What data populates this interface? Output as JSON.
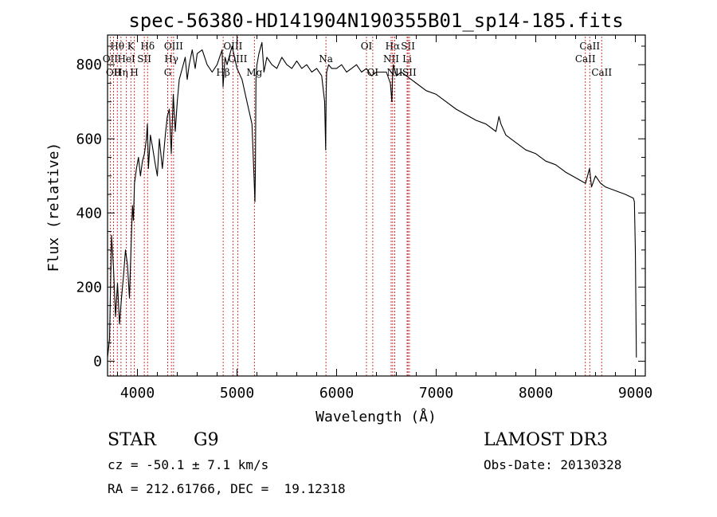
{
  "chart_data": {
    "type": "line",
    "title": "spec-56380-HD141904N190355B01_sp14-185.fits",
    "xlabel": "Wavelength (Å)",
    "ylabel": "Flux (relative)",
    "xlim": [
      3700,
      9100
    ],
    "ylim": [
      -40,
      880
    ],
    "xticks": [
      4000,
      5000,
      6000,
      7000,
      8000,
      9000
    ],
    "yticks": [
      0,
      200,
      400,
      600,
      800
    ],
    "series": [
      {
        "name": "spectrum",
        "x": [
          3700,
          3720,
          3740,
          3760,
          3780,
          3800,
          3820,
          3840,
          3860,
          3880,
          3900,
          3920,
          3940,
          3950,
          3960,
          3970,
          3990,
          4010,
          4030,
          4050,
          4070,
          4090,
          4100,
          4110,
          4130,
          4150,
          4180,
          4200,
          4220,
          4250,
          4280,
          4300,
          4320,
          4340,
          4360,
          4380,
          4400,
          4420,
          4450,
          4480,
          4500,
          4520,
          4550,
          4580,
          4600,
          4650,
          4700,
          4750,
          4800,
          4850,
          4860,
          4880,
          4900,
          4950,
          5000,
          5050,
          5100,
          5150,
          5170,
          5180,
          5185,
          5190,
          5200,
          5220,
          5250,
          5270,
          5300,
          5350,
          5400,
          5450,
          5500,
          5550,
          5600,
          5650,
          5700,
          5750,
          5800,
          5850,
          5880,
          5890,
          5895,
          5900,
          5920,
          5950,
          6000,
          6050,
          6100,
          6150,
          6200,
          6250,
          6300,
          6350,
          6400,
          6450,
          6500,
          6540,
          6555,
          6563,
          6570,
          6600,
          6650,
          6700,
          6750,
          6800,
          6900,
          7000,
          7100,
          7200,
          7300,
          7400,
          7500,
          7600,
          7630,
          7650,
          7700,
          7800,
          7900,
          8000,
          8100,
          8200,
          8300,
          8400,
          8500,
          8540,
          8560,
          8600,
          8650,
          8700,
          8800,
          8900,
          8980,
          8990,
          9000,
          9010
        ],
        "values": [
          10,
          60,
          340,
          250,
          120,
          210,
          100,
          170,
          230,
          300,
          260,
          170,
          340,
          420,
          380,
          480,
          520,
          550,
          500,
          540,
          560,
          600,
          640,
          520,
          610,
          580,
          530,
          500,
          600,
          520,
          610,
          660,
          680,
          560,
          720,
          620,
          700,
          760,
          790,
          820,
          760,
          800,
          840,
          790,
          830,
          840,
          800,
          780,
          800,
          840,
          740,
          820,
          800,
          850,
          790,
          760,
          700,
          640,
          500,
          430,
          520,
          760,
          800,
          830,
          860,
          780,
          820,
          800,
          790,
          820,
          800,
          790,
          810,
          790,
          800,
          780,
          790,
          770,
          700,
          570,
          720,
          780,
          800,
          790,
          790,
          800,
          780,
          790,
          800,
          780,
          790,
          770,
          780,
          780,
          780,
          750,
          700,
          780,
          800,
          770,
          780,
          770,
          760,
          750,
          730,
          720,
          700,
          680,
          665,
          650,
          640,
          620,
          660,
          640,
          610,
          590,
          570,
          560,
          540,
          530,
          510,
          495,
          480,
          520,
          470,
          500,
          480,
          470,
          460,
          450,
          440,
          430,
          300,
          10
        ]
      }
    ],
    "lines": [
      {
        "label": "Hθ",
        "x": 3798,
        "row": 1
      },
      {
        "label": "OII",
        "x": 3727,
        "row": 2
      },
      {
        "label": "OII",
        "x": 3760,
        "row": 3
      },
      {
        "label": "Hη",
        "x": 3835,
        "row": 3
      },
      {
        "label": "K",
        "x": 3934,
        "row": 1
      },
      {
        "label": "HeI",
        "x": 3889,
        "row": 2
      },
      {
        "label": "SII",
        "x": 4069,
        "row": 2
      },
      {
        "label": "H",
        "x": 3969,
        "row": 3
      },
      {
        "label": "Hδ",
        "x": 4102,
        "row": 1
      },
      {
        "label": "OIII",
        "x": 4363,
        "row": 1
      },
      {
        "label": "Hγ",
        "x": 4341,
        "row": 2
      },
      {
        "label": "G",
        "x": 4304,
        "row": 3
      },
      {
        "label": "OIII",
        "x": 4959,
        "row": 1
      },
      {
        "label": "OIII",
        "x": 5007,
        "row": 2
      },
      {
        "label": "Hβ",
        "x": 4861,
        "row": 3
      },
      {
        "label": "Mg",
        "x": 5175,
        "row": 3
      },
      {
        "label": "Na",
        "x": 5893,
        "row": 2
      },
      {
        "label": "OI",
        "x": 6300,
        "row": 1
      },
      {
        "label": "OI",
        "x": 6363,
        "row": 3
      },
      {
        "label": "Hα",
        "x": 6563,
        "row": 1
      },
      {
        "label": "SII",
        "x": 6717,
        "row": 1
      },
      {
        "label": "NII",
        "x": 6548,
        "row": 2
      },
      {
        "label": "Li",
        "x": 6708,
        "row": 2
      },
      {
        "label": "NII",
        "x": 6584,
        "row": 3
      },
      {
        "label": "SII",
        "x": 6731,
        "row": 3
      },
      {
        "label": "CaII",
        "x": 8542,
        "row": 1
      },
      {
        "label": "CaII",
        "x": 8498,
        "row": 2
      },
      {
        "label": "CaII",
        "x": 8662,
        "row": 3
      }
    ]
  },
  "info": {
    "class_label": "STAR",
    "subclass": "G9",
    "survey": "LAMOST DR3",
    "cz": "cz = -50.1 ± 7.1 km/s",
    "obs_date": "Obs-Date: 20130328",
    "coords": "RA = 212.61766, DEC =  19.12318"
  }
}
